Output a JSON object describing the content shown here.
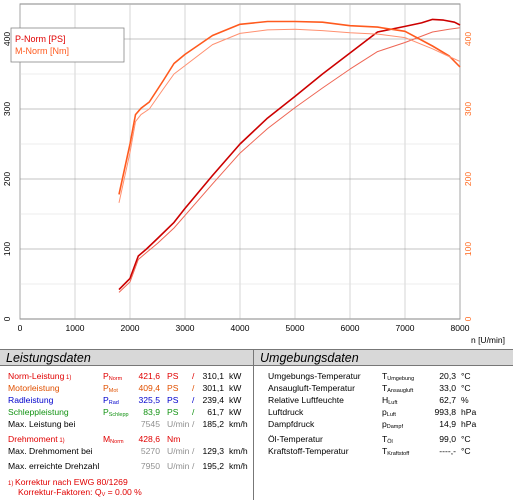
{
  "chart_data": {
    "type": "line",
    "legend": [
      "P-Norm [PS]",
      "M-Norm [Nm]"
    ],
    "legend_colors": [
      "#e00000",
      "#ff5a1e"
    ],
    "xlabel": "n [U/min]",
    "xlim": [
      0,
      8000
    ],
    "x_ticks": [
      0,
      1000,
      2000,
      3000,
      4000,
      5000,
      6000,
      7000,
      8000
    ],
    "y_left_ticks": [
      0,
      100,
      200,
      300,
      400
    ],
    "y_left_lim": [
      0,
      450
    ],
    "y_right_ticks": [
      0,
      100,
      200,
      300,
      400
    ],
    "grid": true,
    "series": [
      {
        "name": "P-Norm [PS]",
        "color": "#cc0000",
        "x": [
          1800,
          2000,
          2150,
          2300,
          2500,
          2800,
          3000,
          3500,
          4000,
          4500,
          5000,
          5500,
          6000,
          6500,
          7000,
          7300,
          7500,
          7700,
          7900,
          8000
        ],
        "y": [
          42,
          58,
          90,
          100,
          115,
          138,
          158,
          205,
          250,
          287,
          318,
          350,
          380,
          410,
          418,
          423,
          428,
          427,
          424,
          420
        ]
      },
      {
        "name": "P-Norm [PS] 2",
        "color": "#ee6655",
        "x": [
          1800,
          2000,
          2150,
          2300,
          2500,
          2800,
          3000,
          3500,
          4000,
          4500,
          5000,
          5500,
          6000,
          6500,
          7000,
          7500,
          7800,
          8000
        ],
        "y": [
          38,
          53,
          85,
          95,
          108,
          130,
          148,
          193,
          237,
          272,
          302,
          330,
          357,
          382,
          395,
          410,
          414,
          416
        ]
      },
      {
        "name": "M-Norm [Nm]",
        "color": "#ff5a1e",
        "x": [
          1800,
          2000,
          2100,
          2200,
          2350,
          2600,
          2800,
          3000,
          3500,
          4000,
          4500,
          5000,
          5500,
          6000,
          6500,
          7000,
          7500,
          7800,
          8000
        ],
        "y": [
          178,
          250,
          292,
          301,
          310,
          340,
          365,
          378,
          405,
          421,
          425,
          425,
          424,
          419,
          417,
          411,
          390,
          376,
          360
        ]
      },
      {
        "name": "M-Norm [Nm] 2",
        "color": "#ff9070",
        "x": [
          1800,
          2000,
          2100,
          2200,
          2350,
          2600,
          2800,
          3000,
          3500,
          4000,
          4500,
          5000,
          5500,
          6000,
          6500,
          7000,
          7500,
          7800,
          8000
        ],
        "y": [
          166,
          238,
          282,
          292,
          300,
          328,
          350,
          362,
          392,
          408,
          413,
          414,
          412,
          409,
          407,
          402,
          386,
          375,
          368
        ]
      }
    ]
  },
  "leistungsdaten": {
    "title": "Leistungsdaten",
    "rows": [
      {
        "label": "Norm-Leistung",
        "ref": "1)",
        "sym": "P",
        "sub": "Norm",
        "v1": "421,6",
        "u1": "PS",
        "sep": "/",
        "v2": "310,1",
        "u2": "kW"
      },
      {
        "label": "Motorleistung",
        "ref": "",
        "sym": "P",
        "sub": "Mot",
        "v1": "409,4",
        "u1": "PS",
        "sep": "/",
        "v2": "301,1",
        "u2": "kW"
      },
      {
        "label": "Radleistung",
        "ref": "",
        "sym": "P",
        "sub": "Rad",
        "v1": "325,5",
        "u1": "PS",
        "sep": "/",
        "v2": "239,4",
        "u2": "kW"
      },
      {
        "label": "Schleppleistung",
        "ref": "",
        "sym": "P",
        "sub": "Schlepp",
        "v1": "83,9",
        "u1": "PS",
        "sep": "/",
        "v2": "61,7",
        "u2": "kW"
      },
      {
        "label": "Max. Leistung bei",
        "ref": "",
        "sym": "",
        "sub": "",
        "v1": "7545",
        "u1": "U/min",
        "sep": "/",
        "v2": "185,2",
        "u2": "km/h"
      },
      {
        "label": "Drehmoment",
        "ref": "1)",
        "sym": "M",
        "sub": "Norm",
        "v1": "428,6",
        "u1": "Nm",
        "sep": "",
        "v2": "",
        "u2": ""
      },
      {
        "label": "Max. Drehmoment bei",
        "ref": "",
        "sym": "",
        "sub": "",
        "v1": "5270",
        "u1": "U/min",
        "sep": "/",
        "v2": "129,3",
        "u2": "km/h"
      },
      {
        "label": "Max. erreichte Drehzahl",
        "ref": "",
        "sym": "",
        "sub": "",
        "v1": "7950",
        "u1": "U/min",
        "sep": "/",
        "v2": "195,2",
        "u2": "km/h"
      }
    ],
    "footnote1": "Korrektur nach EWG 80/1269",
    "footnote1_ref": "1)",
    "footnote2": "Korrektur-Faktoren: Q",
    "footnote2_sub": "V",
    "footnote2_val": "= 0.00 %"
  },
  "umgebungsdaten": {
    "title": "Umgebungsdaten",
    "rows": [
      {
        "label": "Umgebungs-Temperatur",
        "sym": "T",
        "sub": "Umgebung",
        "val": "20,3",
        "unit": "°C"
      },
      {
        "label": "Ansaugluft-Temperatur",
        "sym": "T",
        "sub": "Ansaugluft",
        "val": "33,0",
        "unit": "°C"
      },
      {
        "label": "Relative Luftfeuchte",
        "sym": "H",
        "sub": "Luft",
        "val": "62,7",
        "unit": "%"
      },
      {
        "label": "Luftdruck",
        "sym": "p",
        "sub": "Luft",
        "val": "993,8",
        "unit": "hPa"
      },
      {
        "label": "Dampfdruck",
        "sym": "p",
        "sub": "Dampf",
        "val": "14,9",
        "unit": "hPa"
      },
      {
        "label": "Öl-Temperatur",
        "sym": "T",
        "sub": "Öl",
        "val": "99,0",
        "unit": "°C"
      },
      {
        "label": "Kraftstoff-Temperatur",
        "sym": "T",
        "sub": "Kraftstoff",
        "val": "----,-",
        "unit": "°C"
      }
    ]
  }
}
